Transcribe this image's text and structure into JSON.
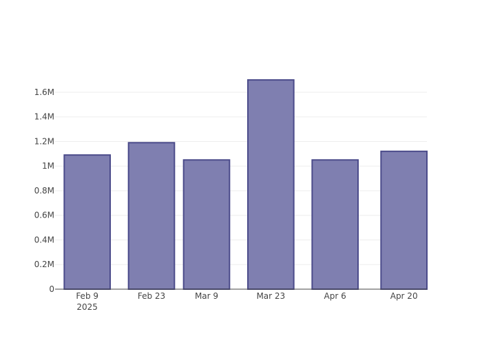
{
  "chart_data": {
    "type": "bar",
    "title": "",
    "xlabel": "",
    "ylabel": "",
    "x_tick_labels": [
      "Feb 9",
      "Feb 23",
      "Mar 9",
      "Mar 23",
      "Apr 6",
      "Apr 20"
    ],
    "x_year_label": "2025",
    "y_tick_labels": [
      "0",
      "0.2M",
      "0.4M",
      "0.6M",
      "0.8M",
      "1M",
      "1.2M",
      "1.4M",
      "1.6M"
    ],
    "y_ticks": [
      0,
      200000,
      400000,
      600000,
      800000,
      1000000,
      1200000,
      1400000,
      1600000
    ],
    "ylim": [
      0,
      1790000
    ],
    "xlim": [
      "2025-02-05",
      "2025-04-27"
    ],
    "bars": [
      {
        "start": "2025-02-07",
        "end": "2025-02-17",
        "value": 1090000
      },
      {
        "start": "2025-02-21",
        "end": "2025-03-03",
        "value": 1190000
      },
      {
        "start": "2025-03-05",
        "end": "2025-03-15",
        "value": 1050000
      },
      {
        "start": "2025-03-19",
        "end": "2025-03-29",
        "value": 1700000
      },
      {
        "start": "2025-04-02",
        "end": "2025-04-12",
        "value": 1050000
      },
      {
        "start": "2025-04-17",
        "end": "2025-04-27",
        "value": 1120000
      }
    ],
    "grid": true,
    "colors": {
      "bar_fill": "#7f7fb0",
      "bar_stroke": "#4b4b8a",
      "grid": "#eeeeee",
      "axis": "#444444"
    }
  }
}
